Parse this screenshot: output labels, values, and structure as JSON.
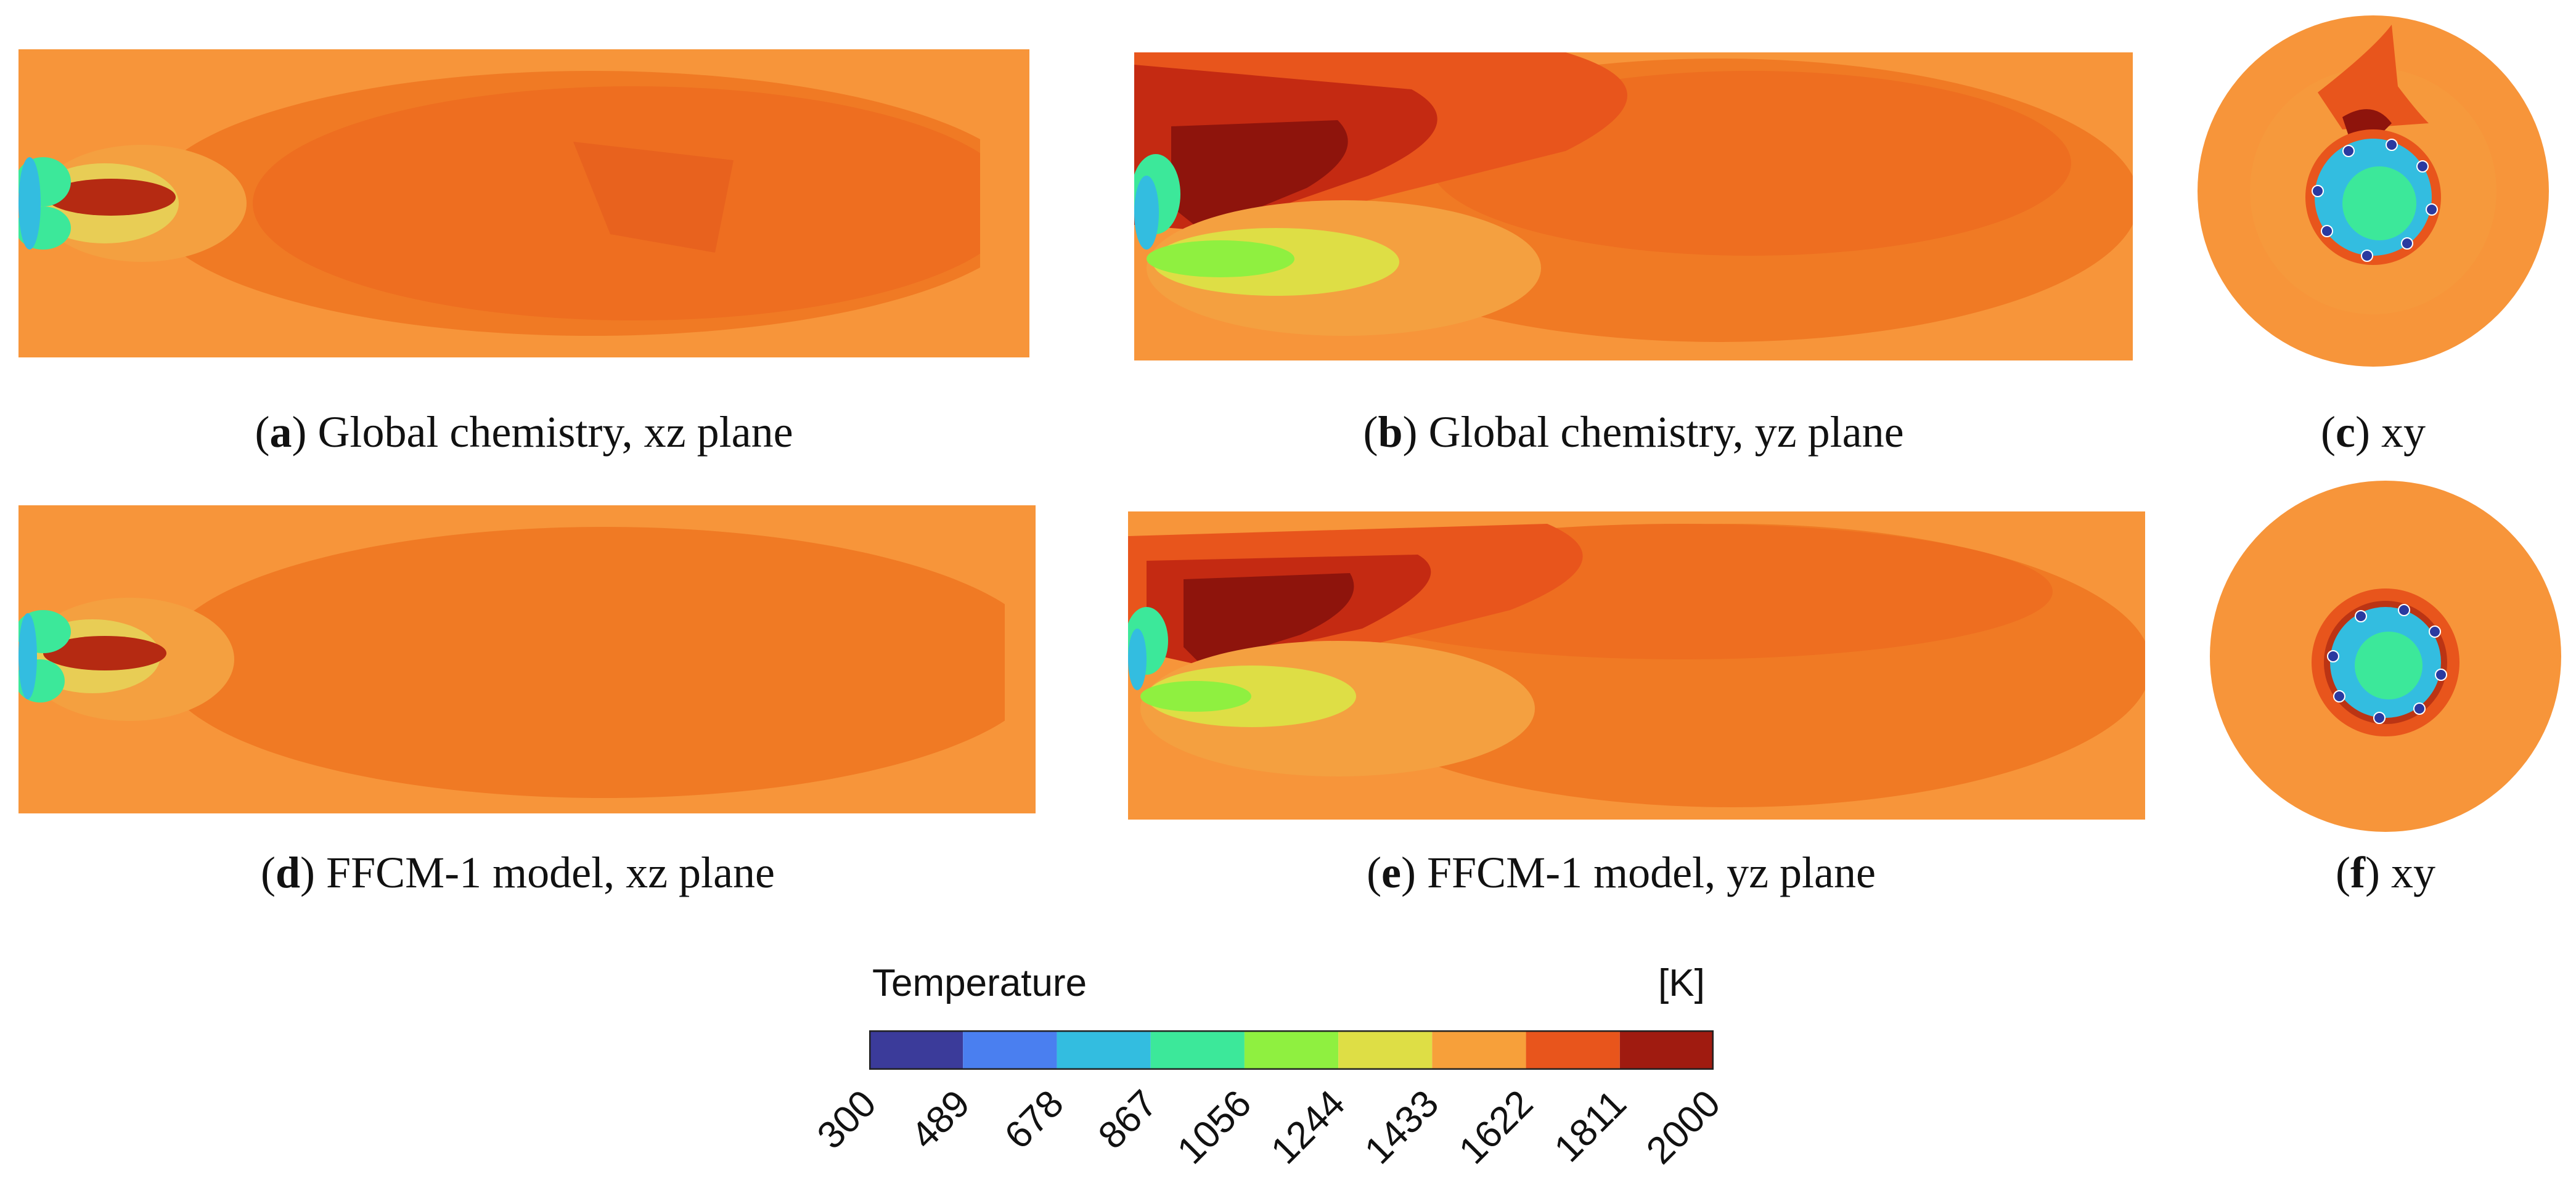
{
  "panels": [
    {
      "id": "a",
      "letter": "a",
      "caption": ") Global chemistry, xz plane"
    },
    {
      "id": "b",
      "letter": "b",
      "caption": ") Global chemistry, yz plane"
    },
    {
      "id": "c",
      "letter": "c",
      "caption": ") xy"
    },
    {
      "id": "d",
      "letter": "d",
      "caption": ") FFCM-1 model, xz plane"
    },
    {
      "id": "e",
      "letter": "e",
      "caption": ") FFCM-1 model, yz plane"
    },
    {
      "id": "f",
      "letter": "f",
      "caption": ") xy"
    }
  ],
  "colorbar": {
    "title": "Temperature",
    "unit": "[K]",
    "ticks": [
      "300",
      "489",
      "678",
      "867",
      "1056",
      "1244",
      "1433",
      "1622",
      "1811",
      "2000"
    ],
    "colors": [
      "#3b3b9a",
      "#4a7ff0",
      "#33bde0",
      "#3ce89a",
      "#8ff040",
      "#dede45",
      "#f7a03a",
      "#e8551c",
      "#a01b10"
    ]
  },
  "palette": {
    "base_orange": "#f7953a",
    "mid_orange": "#f07a24",
    "dark_orange": "#e8621e",
    "red": "#c42a12",
    "dark_red": "#8e140c"
  }
}
